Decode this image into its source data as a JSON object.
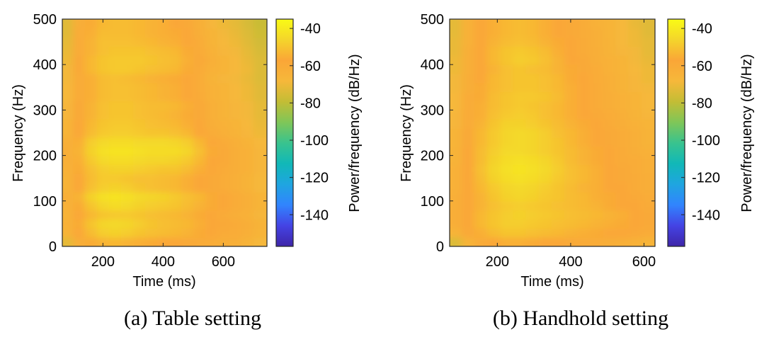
{
  "colors": {
    "colormap": [
      "#3e26a8",
      "#4443e4",
      "#3184fe",
      "#1fa5e0",
      "#11b8b8",
      "#39c38e",
      "#7fc658",
      "#c3bd35",
      "#f6b83a",
      "#faa637",
      "#f4d52b",
      "#f9fb15"
    ],
    "axis": "#262626",
    "background": "#ffffff"
  },
  "chart_data": [
    {
      "type": "heatmap",
      "panel": "a",
      "caption": "(a)  Table setting",
      "xlabel": "Time (ms)",
      "ylabel": "Frequency (Hz)",
      "colorbar_label": "Power/frequency (dB/Hz)",
      "xlim": [
        65,
        745
      ],
      "ylim": [
        0,
        500
      ],
      "clim": [
        -157,
        -35
      ],
      "xticks": [
        200,
        400,
        600
      ],
      "yticks": [
        0,
        100,
        200,
        300,
        400,
        500
      ],
      "cticks": [
        -40,
        -60,
        -80,
        -100,
        -120,
        -140
      ],
      "x_centers": [
        80,
        120,
        160,
        200,
        240,
        280,
        320,
        360,
        400,
        440,
        480,
        520,
        560,
        600,
        640,
        680,
        720
      ],
      "y_centers": [
        10,
        30,
        50,
        70,
        90,
        110,
        130,
        150,
        170,
        190,
        210,
        230,
        250,
        270,
        290,
        310,
        330,
        350,
        370,
        390,
        410,
        430,
        450,
        470,
        490
      ],
      "power_db": [
        [
          -72,
          -62,
          -56,
          -54,
          -53,
          -54,
          -55,
          -56,
          -57,
          -58,
          -59,
          -60,
          -61,
          -62,
          -63,
          -65,
          -68
        ],
        [
          -66,
          -58,
          -52,
          -48,
          -47,
          -48,
          -50,
          -51,
          -52,
          -53,
          -54,
          -56,
          -58,
          -60,
          -61,
          -63,
          -66
        ],
        [
          -64,
          -56,
          -50,
          -46,
          -45,
          -46,
          -48,
          -50,
          -51,
          -52,
          -53,
          -55,
          -57,
          -59,
          -60,
          -62,
          -65
        ],
        [
          -65,
          -58,
          -53,
          -50,
          -49,
          -49,
          -50,
          -51,
          -52,
          -53,
          -54,
          -56,
          -58,
          -60,
          -62,
          -64,
          -67
        ],
        [
          -64,
          -56,
          -50,
          -46,
          -44,
          -45,
          -47,
          -48,
          -49,
          -50,
          -52,
          -54,
          -56,
          -58,
          -61,
          -63,
          -66
        ],
        [
          -63,
          -54,
          -47,
          -43,
          -42,
          -43,
          -45,
          -46,
          -47,
          -49,
          -51,
          -53,
          -56,
          -58,
          -61,
          -63,
          -66
        ],
        [
          -65,
          -57,
          -51,
          -48,
          -47,
          -48,
          -50,
          -51,
          -52,
          -53,
          -55,
          -57,
          -59,
          -61,
          -63,
          -65,
          -68
        ],
        [
          -65,
          -57,
          -52,
          -49,
          -49,
          -50,
          -51,
          -51,
          -52,
          -53,
          -55,
          -57,
          -59,
          -61,
          -63,
          -65,
          -68
        ],
        [
          -64,
          -56,
          -51,
          -48,
          -47,
          -47,
          -48,
          -49,
          -50,
          -50,
          -52,
          -55,
          -58,
          -60,
          -62,
          -64,
          -67
        ],
        [
          -63,
          -55,
          -49,
          -45,
          -44,
          -44,
          -45,
          -46,
          -46,
          -47,
          -49,
          -53,
          -57,
          -59,
          -62,
          -64,
          -67
        ],
        [
          -62,
          -54,
          -47,
          -43,
          -42,
          -42,
          -43,
          -44,
          -44,
          -44,
          -46,
          -51,
          -56,
          -59,
          -62,
          -64,
          -67
        ],
        [
          -63,
          -55,
          -48,
          -45,
          -44,
          -44,
          -45,
          -45,
          -45,
          -46,
          -48,
          -53,
          -58,
          -60,
          -63,
          -65,
          -68
        ],
        [
          -66,
          -58,
          -52,
          -49,
          -48,
          -48,
          -49,
          -50,
          -50,
          -51,
          -53,
          -57,
          -61,
          -63,
          -65,
          -67,
          -70
        ],
        [
          -66,
          -58,
          -53,
          -50,
          -49,
          -49,
          -50,
          -51,
          -52,
          -53,
          -55,
          -58,
          -62,
          -64,
          -66,
          -68,
          -71
        ],
        [
          -67,
          -59,
          -54,
          -51,
          -50,
          -50,
          -51,
          -52,
          -53,
          -54,
          -56,
          -59,
          -63,
          -65,
          -67,
          -69,
          -72
        ],
        [
          -67,
          -59,
          -54,
          -51,
          -50,
          -50,
          -51,
          -52,
          -52,
          -53,
          -55,
          -59,
          -63,
          -65,
          -67,
          -69,
          -72
        ],
        [
          -68,
          -60,
          -55,
          -52,
          -51,
          -51,
          -52,
          -53,
          -54,
          -55,
          -57,
          -60,
          -64,
          -66,
          -68,
          -70,
          -73
        ],
        [
          -68,
          -60,
          -55,
          -52,
          -51,
          -51,
          -52,
          -53,
          -54,
          -55,
          -57,
          -61,
          -64,
          -66,
          -68,
          -70,
          -73
        ],
        [
          -69,
          -60,
          -55,
          -52,
          -51,
          -52,
          -53,
          -54,
          -55,
          -56,
          -58,
          -61,
          -65,
          -67,
          -69,
          -71,
          -74
        ],
        [
          -69,
          -59,
          -53,
          -50,
          -49,
          -49,
          -50,
          -51,
          -52,
          -53,
          -56,
          -60,
          -64,
          -66,
          -68,
          -70,
          -74
        ],
        [
          -70,
          -59,
          -53,
          -50,
          -49,
          -49,
          -49,
          -50,
          -51,
          -52,
          -55,
          -59,
          -63,
          -66,
          -68,
          -71,
          -74
        ],
        [
          -71,
          -60,
          -54,
          -51,
          -50,
          -50,
          -50,
          -51,
          -52,
          -53,
          -56,
          -60,
          -64,
          -67,
          -69,
          -72,
          -75
        ],
        [
          -72,
          -60,
          -54,
          -51,
          -51,
          -51,
          -52,
          -53,
          -54,
          -55,
          -57,
          -61,
          -65,
          -68,
          -70,
          -73,
          -76
        ],
        [
          -73,
          -61,
          -55,
          -52,
          -52,
          -52,
          -53,
          -54,
          -55,
          -56,
          -58,
          -62,
          -66,
          -69,
          -71,
          -74,
          -77
        ],
        [
          -73,
          -62,
          -56,
          -53,
          -52,
          -52,
          -53,
          -54,
          -55,
          -57,
          -59,
          -63,
          -67,
          -70,
          -72,
          -75,
          -78
        ]
      ]
    },
    {
      "type": "heatmap",
      "panel": "b",
      "caption": "(b)  Handhold setting",
      "xlabel": "Time (ms)",
      "ylabel": "Frequency (Hz)",
      "colorbar_label": "Power/frequency (dB/Hz)",
      "xlim": [
        70,
        630
      ],
      "ylim": [
        0,
        500
      ],
      "clim": [
        -157,
        -35
      ],
      "xticks": [
        200,
        400,
        600
      ],
      "yticks": [
        0,
        100,
        200,
        300,
        400,
        500
      ],
      "cticks": [
        -40,
        -60,
        -80,
        -100,
        -120,
        -140
      ],
      "x_centers": [
        85,
        120,
        155,
        190,
        225,
        260,
        295,
        330,
        365,
        400,
        435,
        470,
        505,
        540,
        575,
        610
      ],
      "y_centers": [
        10,
        30,
        50,
        70,
        90,
        110,
        130,
        150,
        170,
        190,
        210,
        230,
        250,
        270,
        290,
        310,
        330,
        350,
        370,
        390,
        410,
        430,
        450,
        470,
        490
      ],
      "power_db": [
        [
          -74,
          -66,
          -60,
          -57,
          -55,
          -55,
          -56,
          -57,
          -58,
          -59,
          -60,
          -61,
          -62,
          -63,
          -64,
          -66
        ],
        [
          -66,
          -59,
          -55,
          -52,
          -50,
          -50,
          -51,
          -52,
          -53,
          -54,
          -55,
          -56,
          -57,
          -58,
          -59,
          -61
        ],
        [
          -62,
          -57,
          -53,
          -50,
          -48,
          -48,
          -49,
          -50,
          -51,
          -52,
          -53,
          -54,
          -55,
          -56,
          -57,
          -59
        ],
        [
          -62,
          -57,
          -53,
          -50,
          -48,
          -47,
          -48,
          -49,
          -50,
          -51,
          -52,
          -53,
          -54,
          -55,
          -57,
          -59
        ],
        [
          -63,
          -58,
          -54,
          -51,
          -49,
          -48,
          -49,
          -50,
          -51,
          -52,
          -53,
          -54,
          -56,
          -57,
          -58,
          -60
        ],
        [
          -63,
          -58,
          -54,
          -50,
          -47,
          -46,
          -47,
          -49,
          -50,
          -52,
          -53,
          -55,
          -56,
          -58,
          -59,
          -61
        ],
        [
          -64,
          -58,
          -53,
          -49,
          -46,
          -45,
          -46,
          -48,
          -50,
          -52,
          -54,
          -55,
          -57,
          -58,
          -60,
          -62
        ],
        [
          -64,
          -58,
          -52,
          -47,
          -44,
          -43,
          -44,
          -46,
          -49,
          -51,
          -53,
          -55,
          -57,
          -59,
          -60,
          -62
        ],
        [
          -64,
          -57,
          -51,
          -46,
          -43,
          -42,
          -43,
          -45,
          -48,
          -51,
          -53,
          -55,
          -57,
          -59,
          -61,
          -63
        ],
        [
          -65,
          -58,
          -52,
          -47,
          -44,
          -43,
          -44,
          -46,
          -49,
          -52,
          -54,
          -56,
          -58,
          -60,
          -61,
          -63
        ],
        [
          -65,
          -58,
          -52,
          -48,
          -45,
          -45,
          -46,
          -48,
          -50,
          -52,
          -54,
          -56,
          -58,
          -60,
          -62,
          -64
        ],
        [
          -66,
          -59,
          -53,
          -49,
          -46,
          -45,
          -46,
          -48,
          -50,
          -53,
          -55,
          -57,
          -59,
          -61,
          -63,
          -65
        ],
        [
          -66,
          -59,
          -53,
          -49,
          -46,
          -45,
          -46,
          -48,
          -51,
          -53,
          -55,
          -57,
          -59,
          -61,
          -63,
          -65
        ],
        [
          -67,
          -60,
          -54,
          -50,
          -47,
          -47,
          -48,
          -50,
          -52,
          -54,
          -56,
          -58,
          -60,
          -62,
          -64,
          -66
        ],
        [
          -67,
          -60,
          -55,
          -51,
          -49,
          -48,
          -49,
          -51,
          -53,
          -55,
          -57,
          -59,
          -61,
          -63,
          -65,
          -67
        ],
        [
          -68,
          -61,
          -55,
          -52,
          -50,
          -49,
          -50,
          -51,
          -53,
          -55,
          -57,
          -60,
          -62,
          -64,
          -66,
          -68
        ],
        [
          -68,
          -61,
          -56,
          -52,
          -50,
          -49,
          -49,
          -50,
          -52,
          -55,
          -57,
          -60,
          -62,
          -64,
          -66,
          -68
        ],
        [
          -69,
          -62,
          -56,
          -53,
          -51,
          -50,
          -50,
          -51,
          -53,
          -55,
          -58,
          -60,
          -63,
          -65,
          -67,
          -69
        ],
        [
          -69,
          -62,
          -57,
          -53,
          -51,
          -50,
          -50,
          -51,
          -53,
          -56,
          -58,
          -61,
          -63,
          -65,
          -67,
          -70
        ],
        [
          -70,
          -63,
          -57,
          -54,
          -51,
          -50,
          -51,
          -52,
          -54,
          -56,
          -59,
          -61,
          -64,
          -66,
          -68,
          -70
        ],
        [
          -70,
          -63,
          -57,
          -53,
          -50,
          -48,
          -49,
          -51,
          -54,
          -57,
          -59,
          -62,
          -64,
          -66,
          -69,
          -71
        ],
        [
          -71,
          -63,
          -57,
          -53,
          -50,
          -49,
          -50,
          -52,
          -55,
          -57,
          -60,
          -62,
          -65,
          -67,
          -69,
          -72
        ],
        [
          -71,
          -64,
          -58,
          -54,
          -52,
          -51,
          -52,
          -54,
          -56,
          -58,
          -60,
          -63,
          -65,
          -68,
          -70,
          -72
        ],
        [
          -72,
          -64,
          -58,
          -55,
          -53,
          -52,
          -53,
          -55,
          -57,
          -59,
          -61,
          -63,
          -66,
          -68,
          -70,
          -73
        ],
        [
          -72,
          -64,
          -58,
          -55,
          -53,
          -52,
          -53,
          -55,
          -57,
          -59,
          -61,
          -64,
          -66,
          -68,
          -71,
          -73
        ]
      ]
    }
  ]
}
